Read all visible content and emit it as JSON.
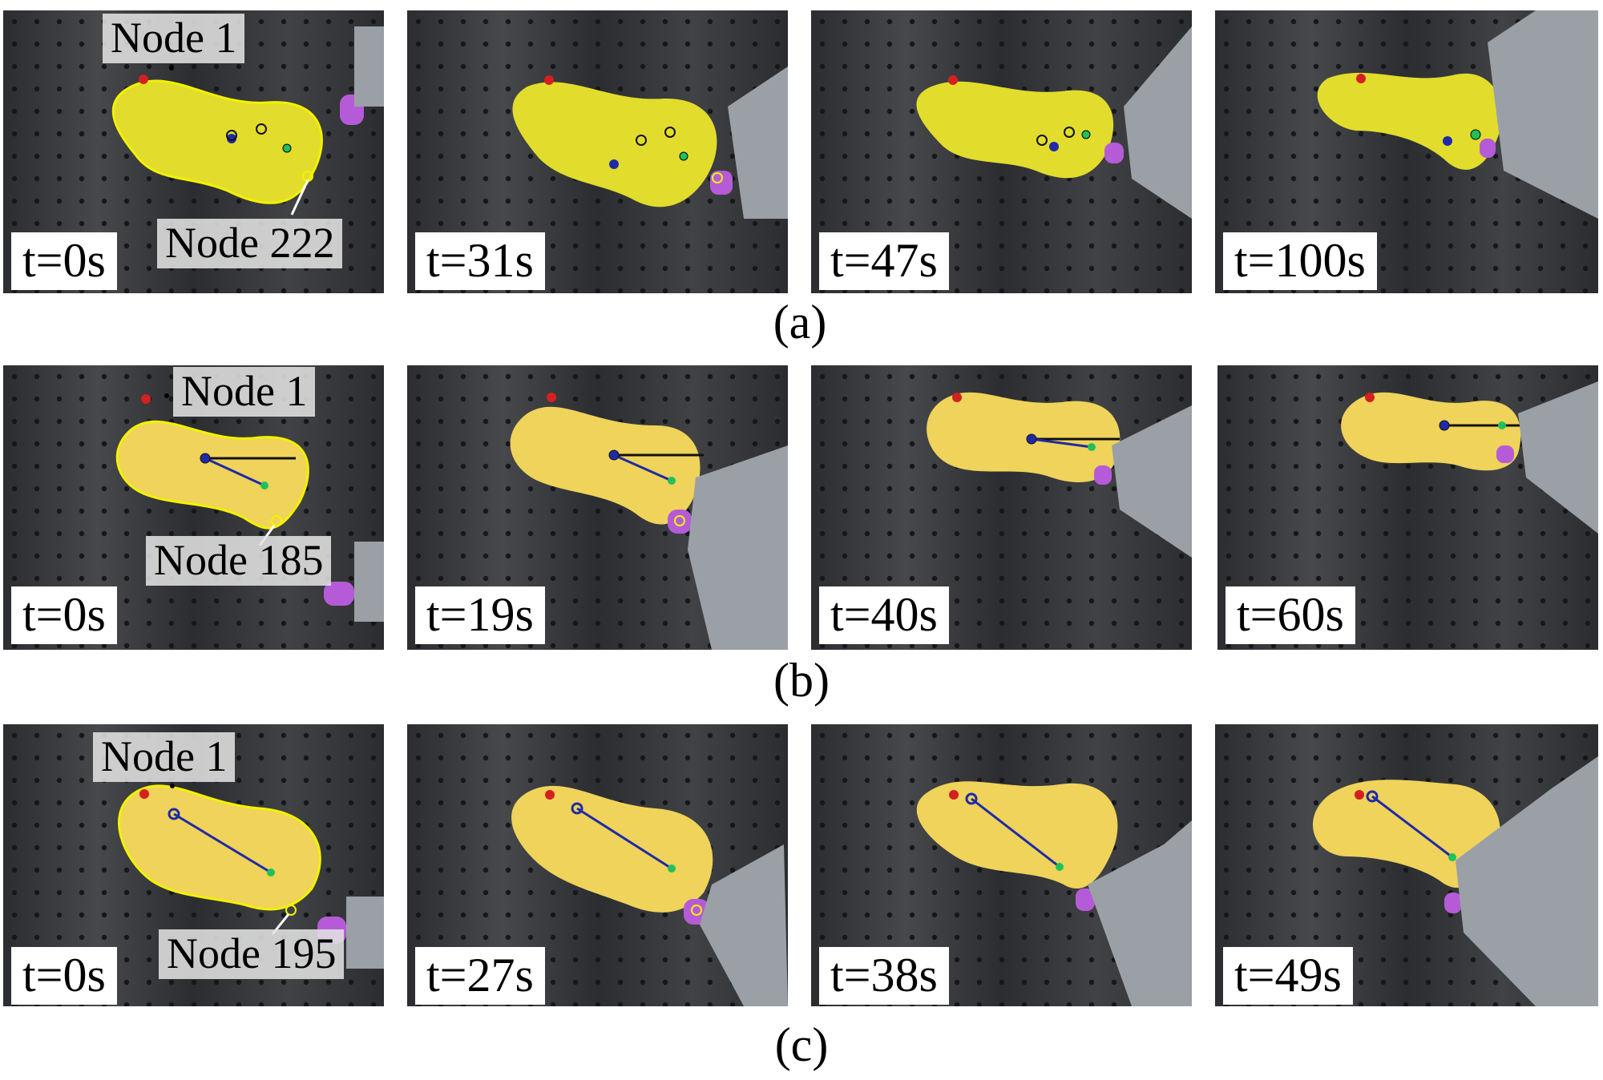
{
  "figure": {
    "row_a": {
      "caption": "(a)",
      "panels": [
        {
          "time": "t=0s",
          "node_start": "Node 1",
          "node_end": "Node 222"
        },
        {
          "time": "t=31s"
        },
        {
          "time": "t=47s"
        },
        {
          "time": "t=100s"
        }
      ]
    },
    "row_b": {
      "caption": "(b)",
      "panels": [
        {
          "time": "t=0s",
          "node_start": "Node 1",
          "node_end": "Node 185"
        },
        {
          "time": "t=19s"
        },
        {
          "time": "t=40s"
        },
        {
          "time": "t=60s"
        }
      ]
    },
    "row_c": {
      "caption": "(c)",
      "panels": [
        {
          "time": "t=0s",
          "node_start": "Node 1",
          "node_end": "Node 195"
        },
        {
          "time": "t=27s"
        },
        {
          "time": "t=38s"
        },
        {
          "time": "t=49s"
        }
      ]
    }
  },
  "colors": {
    "table": "#2b2d30",
    "sponge": "#e9c93a",
    "sponge_bright": "#e2dc2c",
    "contour": "#f2f200",
    "gripper": "#9aa0a6",
    "finger": "#b65bd8",
    "target_point": "#22c05a",
    "current_point": "#1f2aa8",
    "marker_red": "#d42020"
  }
}
